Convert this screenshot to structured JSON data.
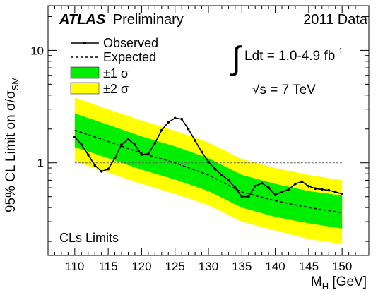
{
  "chart_data": {
    "type": "line",
    "x_scale": "linear",
    "y_scale": "log",
    "xlim": [
      106,
      154
    ],
    "ylim": [
      0.15,
      25
    ],
    "xlabel": "M",
    "xlabel_sub": "H",
    "xlabel_unit": " [GeV]",
    "ylabel": "95% CL Limit on σ/σ",
    "ylabel_sub": "SM",
    "x_ticks": [
      110,
      115,
      120,
      125,
      130,
      135,
      140,
      145,
      150
    ],
    "y_tick_labels": [
      {
        "value": 1,
        "label": "1"
      },
      {
        "value": 10,
        "label": "10"
      }
    ],
    "annotations": {
      "atlas": "ATLAS",
      "preliminary": "Preliminary",
      "dataset": "2011 Data",
      "integral_sign": "∫",
      "lumi_text": "Ldt = 1.0-4.9 fb",
      "lumi_exponent": "-1",
      "sqrt_sign": "√",
      "energy_text": "s = 7 TeV",
      "method": "CLs Limits"
    },
    "legend": {
      "placement": "top-left",
      "observed": "Observed",
      "expected": "Expected",
      "band1": "±1 σ",
      "band2": "±2 σ"
    },
    "colors": {
      "band1": "#00ee00",
      "band2": "#ffff00",
      "observed": "#000000",
      "expected": "#000000",
      "reference_line": "#666666"
    },
    "reference_line": 1,
    "series": [
      {
        "name": "Observed",
        "x": [
          110,
          111,
          112,
          113,
          114,
          115,
          116,
          117,
          118,
          119,
          120,
          121,
          122,
          123,
          124,
          125,
          126,
          127,
          128,
          129,
          130,
          131,
          132,
          133,
          134,
          135,
          136,
          137,
          138,
          139,
          140,
          141,
          142,
          143,
          144,
          145,
          146,
          147,
          148,
          149,
          150
        ],
        "y": [
          1.7,
          1.45,
          1.18,
          0.95,
          0.84,
          0.88,
          1.1,
          1.45,
          1.62,
          1.45,
          1.18,
          1.2,
          1.5,
          1.95,
          2.3,
          2.5,
          2.45,
          2.0,
          1.58,
          1.25,
          1.02,
          0.88,
          0.78,
          0.7,
          0.6,
          0.5,
          0.5,
          0.62,
          0.66,
          0.6,
          0.52,
          0.55,
          0.58,
          0.65,
          0.68,
          0.62,
          0.59,
          0.58,
          0.57,
          0.55,
          0.53
        ]
      },
      {
        "name": "Expected",
        "x": [
          110,
          115,
          120,
          125,
          130,
          135,
          140,
          145,
          150
        ],
        "y": [
          1.95,
          1.55,
          1.22,
          1.0,
          0.78,
          0.55,
          0.46,
          0.4,
          0.36
        ]
      },
      {
        "name": "±1 σ",
        "x": [
          110,
          115,
          120,
          125,
          130,
          135,
          140,
          145,
          150
        ],
        "lower": [
          1.38,
          1.1,
          0.87,
          0.71,
          0.56,
          0.4,
          0.33,
          0.29,
          0.26
        ],
        "upper": [
          2.75,
          2.18,
          1.72,
          1.4,
          1.1,
          0.78,
          0.65,
          0.56,
          0.51
        ]
      },
      {
        "name": "±2 σ",
        "x": [
          110,
          115,
          120,
          125,
          130,
          135,
          140,
          145,
          150
        ],
        "lower": [
          1.03,
          0.82,
          0.65,
          0.53,
          0.42,
          0.3,
          0.25,
          0.21,
          0.19
        ],
        "upper": [
          3.8,
          3.0,
          2.38,
          1.93,
          1.52,
          1.08,
          0.9,
          0.78,
          0.7
        ]
      }
    ]
  }
}
